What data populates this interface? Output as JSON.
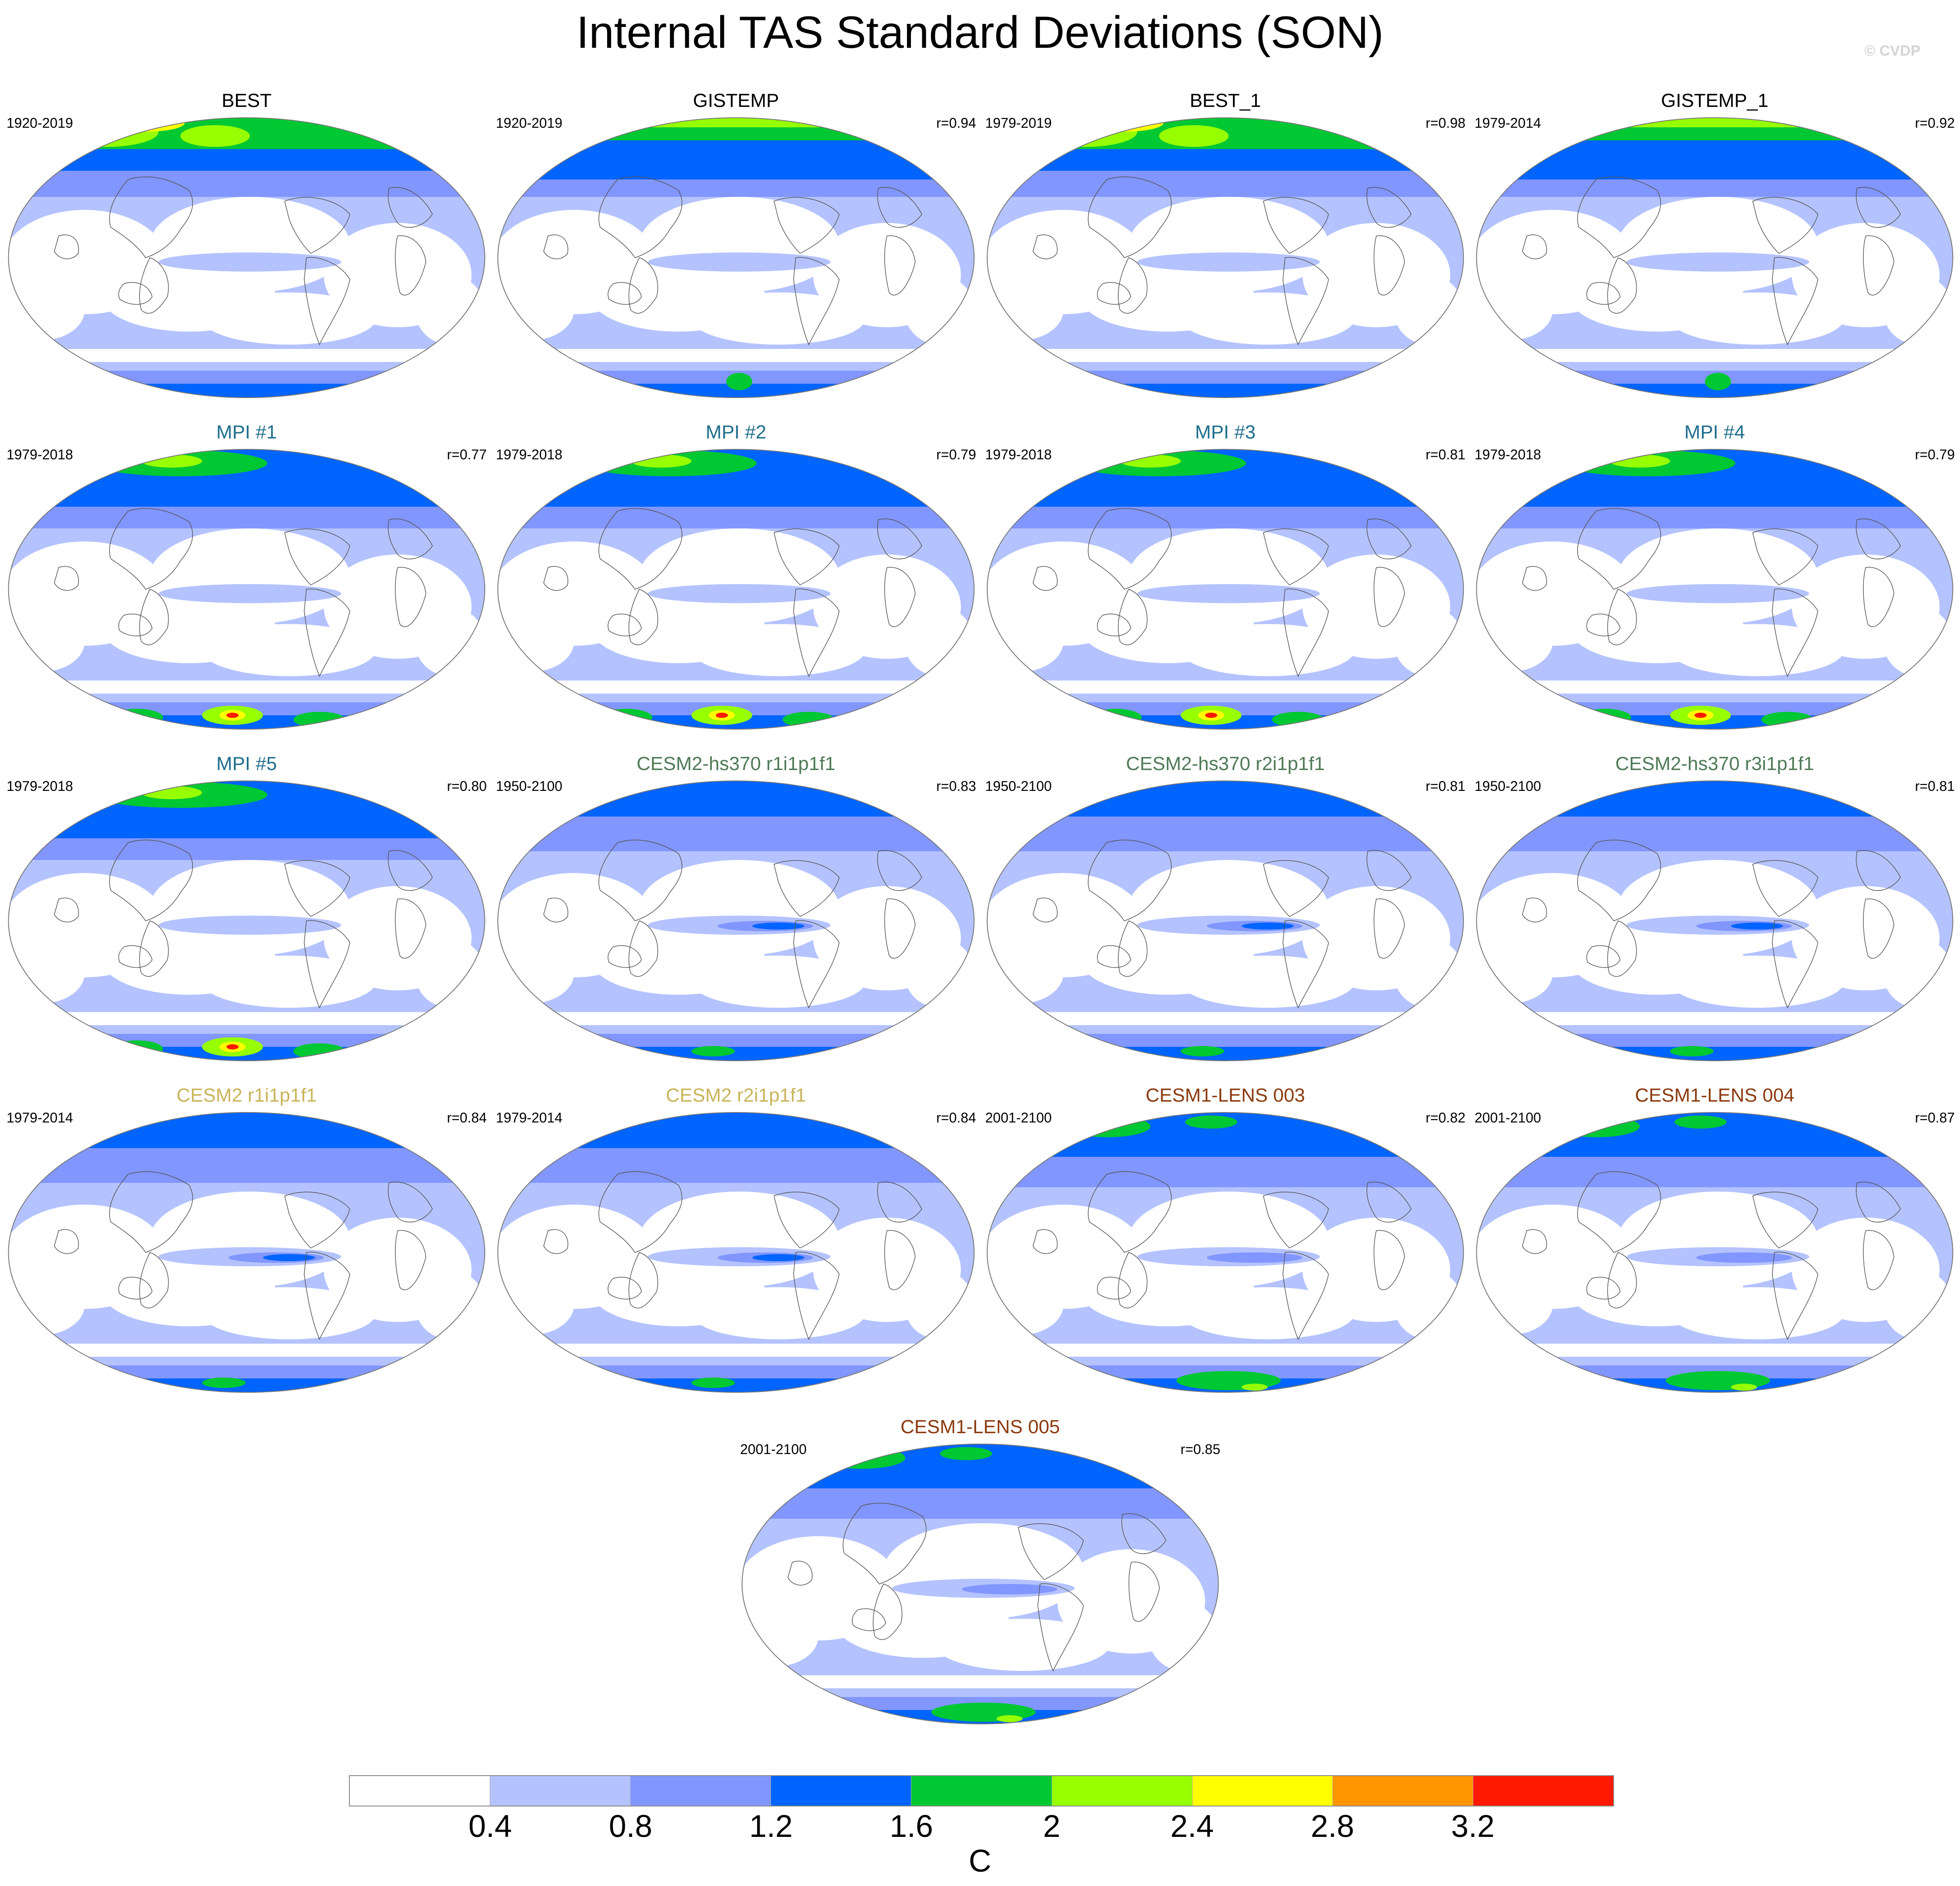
{
  "title": "Internal TAS Standard Deviations (SON)",
  "copyright": "© CVDP",
  "panels": [
    {
      "title": "BEST",
      "years": "1920-2019",
      "r": "",
      "title_color": "#000000",
      "style": 0
    },
    {
      "title": "GISTEMP",
      "years": "1920-2019",
      "r": "r=0.94",
      "title_color": "#000000",
      "style": 1
    },
    {
      "title": "BEST_1",
      "years": "1979-2019",
      "r": "r=0.98",
      "title_color": "#000000",
      "style": 0
    },
    {
      "title": "GISTEMP_1",
      "years": "1979-2014",
      "r": "r=0.92",
      "title_color": "#000000",
      "style": 1
    },
    {
      "title": "MPI #1",
      "years": "1979-2018",
      "r": "r=0.77",
      "title_color": "#1f6e8c",
      "style": 2
    },
    {
      "title": "MPI #2",
      "years": "1979-2018",
      "r": "r=0.79",
      "title_color": "#1f6e8c",
      "style": 2
    },
    {
      "title": "MPI #3",
      "years": "1979-2018",
      "r": "r=0.81",
      "title_color": "#1f6e8c",
      "style": 2
    },
    {
      "title": "MPI #4",
      "years": "1979-2018",
      "r": "r=0.79",
      "title_color": "#1f6e8c",
      "style": 2
    },
    {
      "title": "MPI #5",
      "years": "1979-2018",
      "r": "r=0.80",
      "title_color": "#1f6e8c",
      "style": 2
    },
    {
      "title": "CESM2-hs370 r1i1p1f1",
      "years": "1950-2100",
      "r": "r=0.83",
      "title_color": "#4f7a57",
      "style": 3
    },
    {
      "title": "CESM2-hs370 r2i1p1f1",
      "years": "1950-2100",
      "r": "r=0.81",
      "title_color": "#4f7a57",
      "style": 3
    },
    {
      "title": "CESM2-hs370 r3i1p1f1",
      "years": "1950-2100",
      "r": "r=0.81",
      "title_color": "#4f7a57",
      "style": 3
    },
    {
      "title": "CESM2 r1i1p1f1",
      "years": "1979-2014",
      "r": "r=0.84",
      "title_color": "#c9b45a",
      "style": 4
    },
    {
      "title": "CESM2 r2i1p1f1",
      "years": "1979-2014",
      "r": "r=0.84",
      "title_color": "#c9b45a",
      "style": 4
    },
    {
      "title": "CESM1-LENS 003",
      "years": "2001-2100",
      "r": "r=0.82",
      "title_color": "#8b3a0f",
      "style": 5
    },
    {
      "title": "CESM1-LENS 004",
      "years": "2001-2100",
      "r": "r=0.87",
      "title_color": "#8b3a0f",
      "style": 5
    },
    {
      "title": "CESM1-LENS 005",
      "years": "2001-2100",
      "r": "r=0.85",
      "title_color": "#8b3a0f",
      "style": 5
    }
  ],
  "colorbar": {
    "colors": [
      "#ffffff",
      "#b4c3ff",
      "#8296ff",
      "#0064ff",
      "#00c832",
      "#96ff00",
      "#ffff00",
      "#ff9600",
      "#ff1900"
    ],
    "labels": [
      "0.4",
      "0.8",
      "1.2",
      "1.6",
      "2",
      "2.4",
      "2.8",
      "3.2"
    ],
    "unit": "C"
  }
}
